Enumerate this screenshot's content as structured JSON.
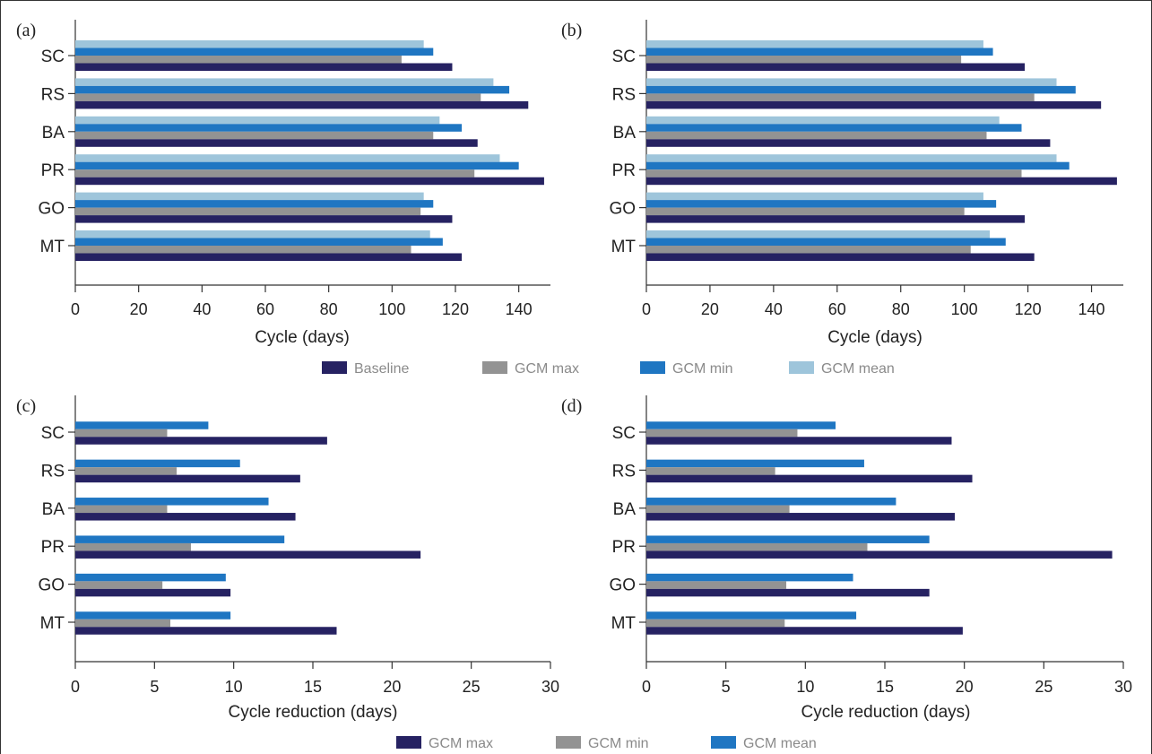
{
  "colors": {
    "navy": "#262262",
    "gray": "#939393",
    "blue": "#1f76c2",
    "lightblue": "#9ec5db"
  },
  "legend_top": {
    "items": [
      {
        "label": "Baseline",
        "color": "#262262"
      },
      {
        "label": "GCM max",
        "color": "#939393"
      },
      {
        "label": "GCM min",
        "color": "#1f76c2"
      },
      {
        "label": "GCM mean",
        "color": "#9ec5db"
      }
    ]
  },
  "legend_bottom": {
    "items": [
      {
        "label": "GCM max",
        "color": "#262262"
      },
      {
        "label": "GCM min",
        "color": "#939393"
      },
      {
        "label": "GCM mean",
        "color": "#1f76c2"
      }
    ]
  },
  "chart_data": [
    {
      "type": "bar",
      "orientation": "horizontal",
      "panel_label": "(a)",
      "categories": [
        "SC",
        "RS",
        "BA",
        "PR",
        "GO",
        "MT"
      ],
      "xlabel": "Cycle (days)",
      "xlim": [
        0,
        150
      ],
      "xticks": [
        0,
        20,
        40,
        60,
        80,
        100,
        120,
        140
      ],
      "series": [
        {
          "name": "GCM mean",
          "color": "#9ec5db",
          "values": [
            110,
            132,
            115,
            134,
            110,
            112
          ]
        },
        {
          "name": "GCM min",
          "color": "#1f76c2",
          "values": [
            113,
            137,
            122,
            140,
            113,
            116
          ]
        },
        {
          "name": "GCM max",
          "color": "#939393",
          "values": [
            103,
            128,
            113,
            126,
            109,
            106
          ]
        },
        {
          "name": "Baseline",
          "color": "#262262",
          "values": [
            119,
            143,
            127,
            148,
            119,
            122
          ]
        }
      ]
    },
    {
      "type": "bar",
      "orientation": "horizontal",
      "panel_label": "(b)",
      "categories": [
        "SC",
        "RS",
        "BA",
        "PR",
        "GO",
        "MT"
      ],
      "xlabel": "Cycle (days)",
      "xlim": [
        0,
        150
      ],
      "xticks": [
        0,
        20,
        40,
        60,
        80,
        100,
        120,
        140
      ],
      "series": [
        {
          "name": "GCM mean",
          "color": "#9ec5db",
          "values": [
            106,
            129,
            111,
            129,
            106,
            108
          ]
        },
        {
          "name": "GCM min",
          "color": "#1f76c2",
          "values": [
            109,
            135,
            118,
            133,
            110,
            113
          ]
        },
        {
          "name": "GCM max",
          "color": "#939393",
          "values": [
            99,
            122,
            107,
            118,
            100,
            102
          ]
        },
        {
          "name": "Baseline",
          "color": "#262262",
          "values": [
            119,
            143,
            127,
            148,
            119,
            122
          ]
        }
      ]
    },
    {
      "type": "bar",
      "orientation": "horizontal",
      "panel_label": "(c)",
      "categories": [
        "SC",
        "RS",
        "BA",
        "PR",
        "GO",
        "MT"
      ],
      "xlabel": "Cycle reduction (days)",
      "xlim": [
        0,
        30
      ],
      "xticks": [
        0,
        5,
        10,
        15,
        20,
        25,
        30
      ],
      "series": [
        {
          "name": "GCM mean",
          "color": "#1f76c2",
          "values": [
            8.4,
            10.4,
            12.2,
            13.2,
            9.5,
            9.8
          ]
        },
        {
          "name": "GCM min",
          "color": "#939393",
          "values": [
            5.8,
            6.4,
            5.8,
            7.3,
            5.5,
            6.0
          ]
        },
        {
          "name": "GCM max",
          "color": "#262262",
          "values": [
            15.9,
            14.2,
            13.9,
            21.8,
            9.8,
            16.5
          ]
        }
      ]
    },
    {
      "type": "bar",
      "orientation": "horizontal",
      "panel_label": "(d)",
      "categories": [
        "SC",
        "RS",
        "BA",
        "PR",
        "GO",
        "MT"
      ],
      "xlabel": "Cycle reduction (days)",
      "xlim": [
        0,
        30
      ],
      "xticks": [
        0,
        5,
        10,
        15,
        20,
        25,
        30
      ],
      "series": [
        {
          "name": "GCM mean",
          "color": "#1f76c2",
          "values": [
            11.9,
            13.7,
            15.7,
            17.8,
            13.0,
            13.2
          ]
        },
        {
          "name": "GCM min",
          "color": "#939393",
          "values": [
            9.5,
            8.1,
            9.0,
            13.9,
            8.8,
            8.7
          ]
        },
        {
          "name": "GCM max",
          "color": "#262262",
          "values": [
            19.2,
            20.5,
            19.4,
            29.3,
            17.8,
            19.9
          ]
        }
      ]
    }
  ]
}
